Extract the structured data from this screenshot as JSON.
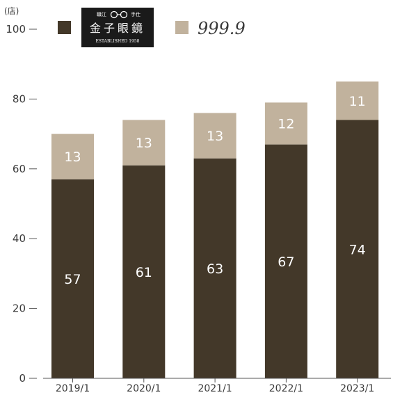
{
  "colors": {
    "bottom_series": "#433829",
    "top_series": "#c1b29d",
    "axis": "#555555"
  },
  "chart_data": {
    "type": "bar",
    "stacked": true,
    "unit_label": "(店)",
    "categories": [
      "2019/1",
      "2020/1",
      "2021/1",
      "2022/1",
      "2023/1"
    ],
    "series": [
      {
        "name": "金子眼鏡",
        "values": [
          57,
          61,
          63,
          67,
          74
        ]
      },
      {
        "name": "999.9",
        "values": [
          13,
          13,
          13,
          12,
          11
        ]
      }
    ],
    "ylim": [
      0,
      100
    ],
    "yticks": [
      "0",
      "20",
      "40",
      "60",
      "80",
      "100"
    ],
    "grid": false,
    "legend_position": "top"
  },
  "legend": {
    "brand1_title": "金子眼鏡",
    "brand1_small_left": "職江",
    "brand1_small_right": "手仕",
    "brand1_established": "ESTABLISHED 1958",
    "brand2_text": "999.9"
  }
}
